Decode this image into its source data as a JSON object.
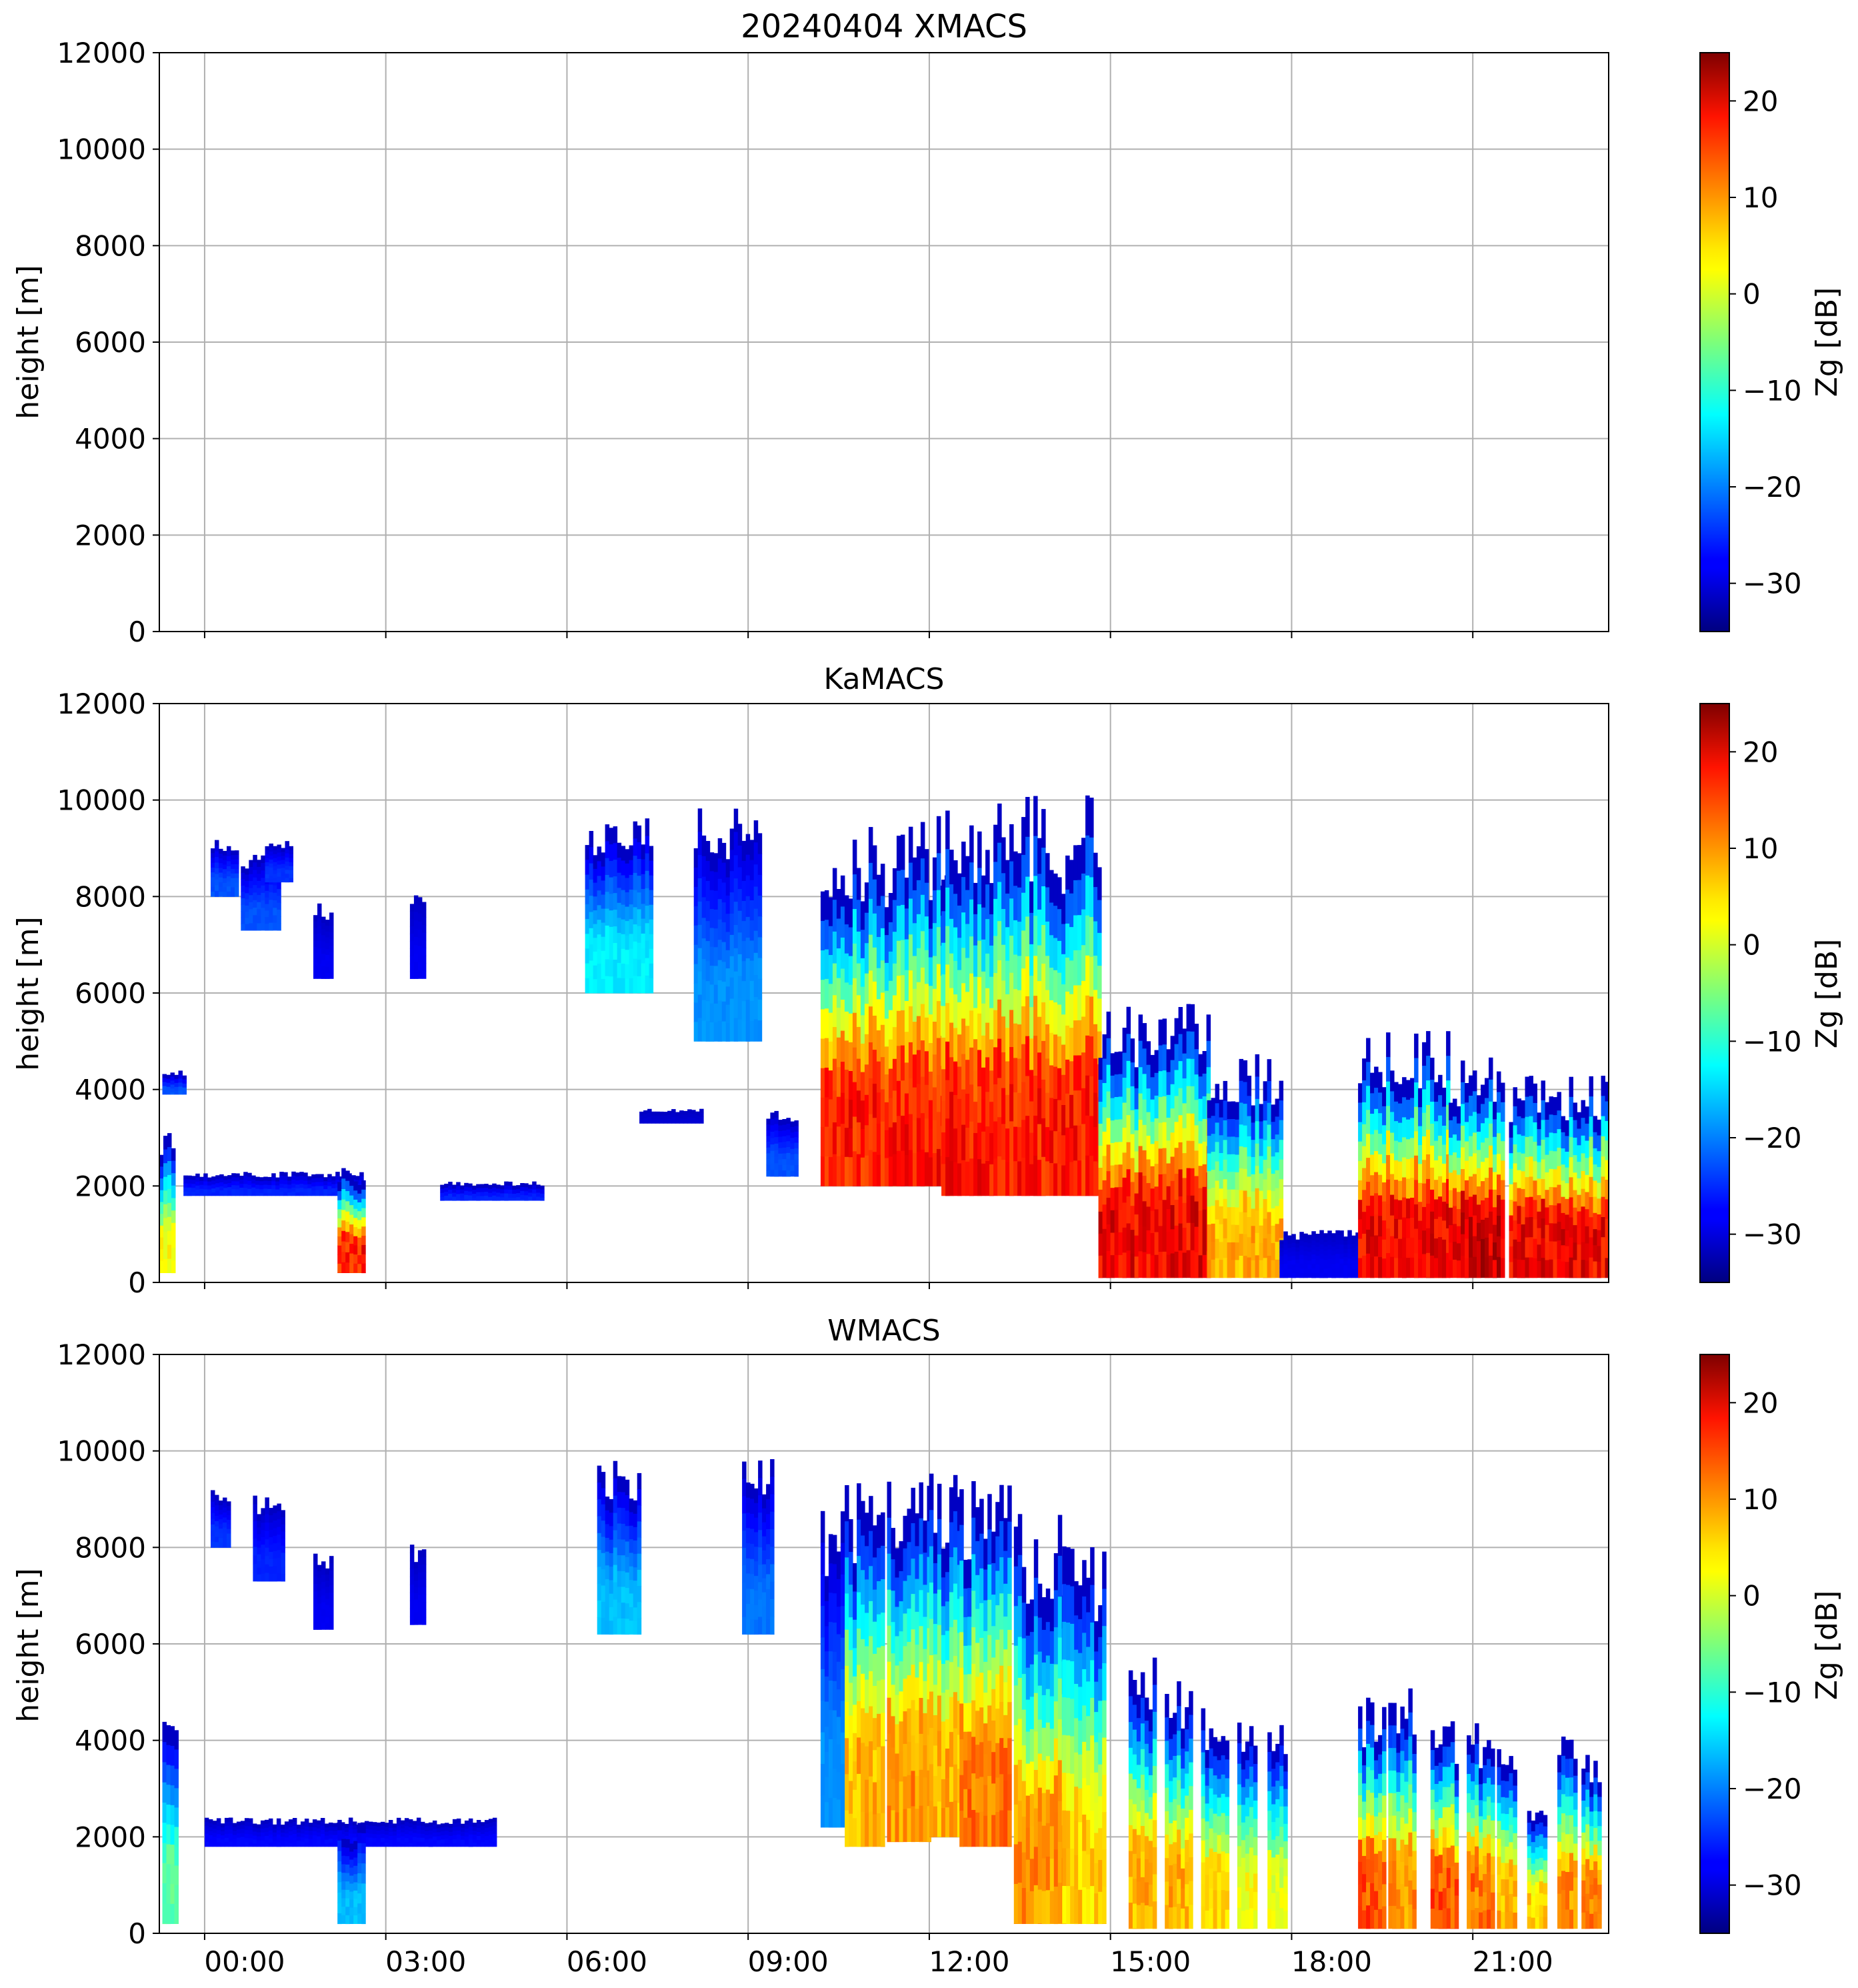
{
  "chart_data": [
    {
      "type": "heatmap",
      "title": "20240404 XMACS",
      "ylabel": "height [m]",
      "xlabel": "",
      "ylim": [
        0,
        12000
      ],
      "xlim": [
        -0.75,
        23.25
      ],
      "yticks": [
        0,
        2000,
        4000,
        6000,
        8000,
        10000,
        12000
      ],
      "xticks": [
        0,
        3,
        6,
        9,
        12,
        15,
        18,
        21
      ],
      "xtick_labels": [],
      "grid": true,
      "colorbar": {
        "label": "Zg [dB]",
        "range": [
          -35,
          25
        ],
        "ticks": [
          -30,
          -20,
          -10,
          0,
          10,
          20
        ],
        "colormap": "jet"
      },
      "echoes": []
    },
    {
      "type": "heatmap",
      "title": "KaMACS",
      "ylabel": "height [m]",
      "xlabel": "",
      "ylim": [
        0,
        12000
      ],
      "xlim": [
        -0.75,
        23.25
      ],
      "yticks": [
        0,
        2000,
        4000,
        6000,
        8000,
        10000,
        12000
      ],
      "xticks": [
        0,
        3,
        6,
        9,
        12,
        15,
        18,
        21
      ],
      "xtick_labels": [],
      "grid": true,
      "colorbar": {
        "label": "Zg [dB]",
        "range": [
          -35,
          25
        ],
        "ticks": [
          -30,
          -20,
          -10,
          0,
          10,
          20
        ],
        "colormap": "jet"
      },
      "echoes": [
        {
          "t0": -0.75,
          "t1": -0.55,
          "base": 200,
          "top": 3100,
          "zmax": 5
        },
        {
          "t0": -0.7,
          "t1": -0.35,
          "base": 3900,
          "top": 4400,
          "zmax": -22
        },
        {
          "t0": -0.35,
          "t1": 2.6,
          "base": 1800,
          "top": 2300,
          "zmax": -25
        },
        {
          "t0": 0.1,
          "t1": 0.5,
          "base": 8000,
          "top": 9200,
          "zmax": -22
        },
        {
          "t0": 0.6,
          "t1": 1.2,
          "base": 7300,
          "top": 8900,
          "zmax": -22
        },
        {
          "t0": 1.0,
          "t1": 1.4,
          "base": 8300,
          "top": 9200,
          "zmax": -24
        },
        {
          "t0": 1.8,
          "t1": 2.1,
          "base": 6300,
          "top": 7900,
          "zmax": -28
        },
        {
          "t0": 2.2,
          "t1": 2.6,
          "base": 200,
          "top": 2500,
          "zmax": 20
        },
        {
          "t0": 3.4,
          "t1": 3.6,
          "base": 6300,
          "top": 8200,
          "zmax": -28
        },
        {
          "t0": 3.9,
          "t1": 5.6,
          "base": 1700,
          "top": 2100,
          "zmax": -25
        },
        {
          "t0": 6.3,
          "t1": 7.4,
          "base": 6000,
          "top": 9800,
          "zmax": -12
        },
        {
          "t0": 7.2,
          "t1": 8.2,
          "base": 3300,
          "top": 3600,
          "zmax": -30
        },
        {
          "t0": 8.1,
          "t1": 9.2,
          "base": 5000,
          "top": 10000,
          "zmax": -18
        },
        {
          "t0": 9.3,
          "t1": 9.8,
          "base": 2200,
          "top": 3700,
          "zmax": -22
        },
        {
          "t0": 10.2,
          "t1": 12.4,
          "base": 2000,
          "top": 9700,
          "zmax": 20
        },
        {
          "t0": 12.2,
          "t1": 14.8,
          "base": 1800,
          "top": 10100,
          "zmax": 20
        },
        {
          "t0": 14.8,
          "t1": 16.6,
          "base": 100,
          "top": 5900,
          "zmax": 22
        },
        {
          "t0": 16.6,
          "t1": 17.8,
          "base": 100,
          "top": 4800,
          "zmax": 10
        },
        {
          "t0": 17.8,
          "t1": 19.1,
          "base": 100,
          "top": 1100,
          "zmax": -28
        },
        {
          "t0": 19.1,
          "t1": 20.6,
          "base": 100,
          "top": 5300,
          "zmax": 22
        },
        {
          "t0": 20.6,
          "t1": 21.5,
          "base": 100,
          "top": 4800,
          "zmax": 24
        },
        {
          "t0": 21.6,
          "t1": 23.25,
          "base": 100,
          "top": 4300,
          "zmax": 22
        }
      ]
    },
    {
      "type": "heatmap",
      "title": "WMACS",
      "ylabel": "height [m]",
      "xlabel": "",
      "ylim": [
        0,
        12000
      ],
      "xlim": [
        -0.75,
        23.25
      ],
      "yticks": [
        0,
        2000,
        4000,
        6000,
        8000,
        10000,
        12000
      ],
      "xticks": [
        0,
        3,
        6,
        9,
        12,
        15,
        18,
        21
      ],
      "xtick_labels": [
        "00:00",
        "03:00",
        "06:00",
        "09:00",
        "12:00",
        "15:00",
        "18:00",
        "21:00"
      ],
      "grid": true,
      "colorbar": {
        "label": "Zg [dB]",
        "range": [
          -35,
          25
        ],
        "ticks": [
          -30,
          -20,
          -10,
          0,
          10,
          20
        ],
        "colormap": "jet"
      },
      "echoes": [
        {
          "t0": -0.7,
          "t1": -0.5,
          "base": 200,
          "top": 4400,
          "zmax": -5
        },
        {
          "t0": 0.0,
          "t1": 4.8,
          "base": 1800,
          "top": 2400,
          "zmax": -27
        },
        {
          "t0": 0.1,
          "t1": 0.4,
          "base": 8000,
          "top": 9200,
          "zmax": -24
        },
        {
          "t0": 0.8,
          "t1": 1.3,
          "base": 7300,
          "top": 9100,
          "zmax": -25
        },
        {
          "t0": 1.8,
          "t1": 2.1,
          "base": 6300,
          "top": 7900,
          "zmax": -28
        },
        {
          "t0": 2.2,
          "t1": 2.6,
          "base": 200,
          "top": 2400,
          "zmax": -15
        },
        {
          "t0": 3.4,
          "t1": 3.6,
          "base": 6400,
          "top": 8100,
          "zmax": -28
        },
        {
          "t0": 6.5,
          "t1": 7.2,
          "base": 6200,
          "top": 9800,
          "zmax": -15
        },
        {
          "t0": 8.9,
          "t1": 9.4,
          "base": 6200,
          "top": 9900,
          "zmax": -20
        },
        {
          "t0": 10.2,
          "t1": 10.6,
          "base": 2200,
          "top": 9000,
          "zmax": -18
        },
        {
          "t0": 10.6,
          "t1": 11.2,
          "base": 1800,
          "top": 9600,
          "zmax": 10
        },
        {
          "t0": 11.3,
          "t1": 12.0,
          "base": 1900,
          "top": 9700,
          "zmax": 12
        },
        {
          "t0": 12.0,
          "t1": 12.5,
          "base": 2000,
          "top": 9900,
          "zmax": 10
        },
        {
          "t0": 12.5,
          "t1": 13.3,
          "base": 1800,
          "top": 9600,
          "zmax": 14
        },
        {
          "t0": 13.4,
          "t1": 14.2,
          "base": 200,
          "top": 8900,
          "zmax": 12
        },
        {
          "t0": 14.2,
          "t1": 14.9,
          "base": 200,
          "top": 8500,
          "zmax": 8
        },
        {
          "t0": 15.3,
          "t1": 15.7,
          "base": 100,
          "top": 5800,
          "zmax": 10
        },
        {
          "t0": 15.9,
          "t1": 16.3,
          "base": 100,
          "top": 5300,
          "zmax": 10
        },
        {
          "t0": 16.5,
          "t1": 16.9,
          "base": 100,
          "top": 5000,
          "zmax": 8
        },
        {
          "t0": 17.1,
          "t1": 17.4,
          "base": 100,
          "top": 4700,
          "zmax": 5
        },
        {
          "t0": 17.6,
          "t1": 17.9,
          "base": 100,
          "top": 4500,
          "zmax": 3
        },
        {
          "t0": 19.1,
          "t1": 19.5,
          "base": 100,
          "top": 5100,
          "zmax": 16
        },
        {
          "t0": 19.6,
          "t1": 20.0,
          "base": 100,
          "top": 5200,
          "zmax": 12
        },
        {
          "t0": 20.3,
          "t1": 20.7,
          "base": 100,
          "top": 4600,
          "zmax": 16
        },
        {
          "t0": 20.9,
          "t1": 21.3,
          "base": 100,
          "top": 4500,
          "zmax": 14
        },
        {
          "t0": 21.4,
          "t1": 21.7,
          "base": 100,
          "top": 4200,
          "zmax": 10
        },
        {
          "t0": 21.9,
          "t1": 22.2,
          "base": 100,
          "top": 2800,
          "zmax": 8
        },
        {
          "t0": 22.4,
          "t1": 22.7,
          "base": 100,
          "top": 4100,
          "zmax": 12
        },
        {
          "t0": 22.8,
          "t1": 23.1,
          "base": 100,
          "top": 3800,
          "zmax": 14
        }
      ]
    }
  ]
}
